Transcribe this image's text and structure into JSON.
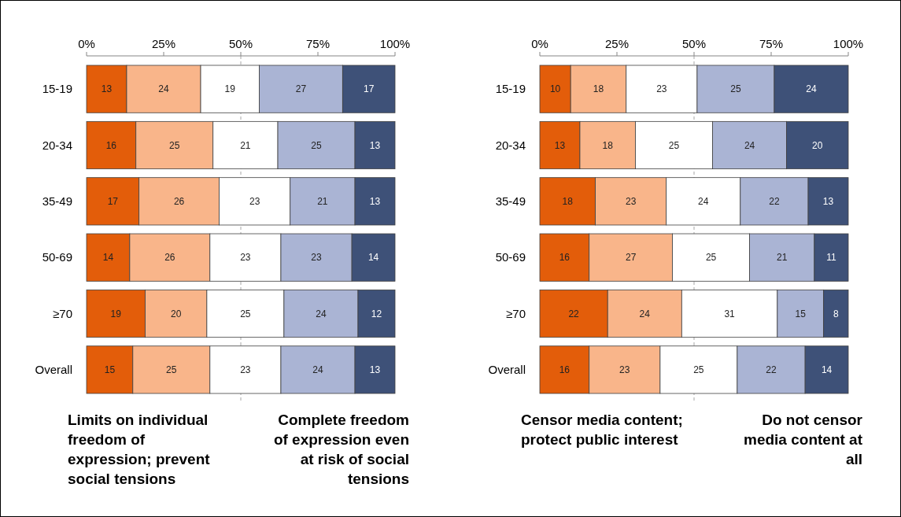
{
  "chart_data": [
    {
      "type": "bar",
      "orientation": "horizontal",
      "stacked": true,
      "data_labels": true,
      "categories": [
        "15-19",
        "20-34",
        "35-49",
        "50-69",
        "≥70",
        "Overall"
      ],
      "xlim": [
        0,
        100
      ],
      "xticks": [
        {
          "value": 0,
          "label": "0%"
        },
        {
          "value": 25,
          "label": "25%"
        },
        {
          "value": 50,
          "label": "50%"
        },
        {
          "value": 75,
          "label": "75%"
        },
        {
          "value": 100,
          "label": "100%"
        }
      ],
      "series": [
        {
          "color": "#e35d0a",
          "values": [
            13,
            16,
            17,
            14,
            19,
            15
          ]
        },
        {
          "color": "#f9b58a",
          "values": [
            24,
            25,
            26,
            26,
            20,
            25
          ]
        },
        {
          "color": "#ffffff",
          "values": [
            19,
            21,
            23,
            23,
            25,
            23
          ]
        },
        {
          "color": "#aab4d4",
          "values": [
            27,
            25,
            21,
            23,
            24,
            24
          ]
        },
        {
          "color": "#3e5178",
          "values": [
            17,
            13,
            13,
            14,
            12,
            13
          ]
        }
      ],
      "ref_lines": [
        {
          "axis": "x",
          "value": 50,
          "color": "#a6a6a6",
          "line_style": "dashed"
        }
      ],
      "annotations": [
        "Limits on individual\nfreedom of\nexpression; prevent\nsocial tensions",
        "Complete freedom\nof expression even\nat risk of social\ntensions"
      ]
    },
    {
      "type": "bar",
      "orientation": "horizontal",
      "stacked": true,
      "data_labels": true,
      "categories": [
        "15-19",
        "20-34",
        "35-49",
        "50-69",
        "≥70",
        "Overall"
      ],
      "xlim": [
        0,
        100
      ],
      "xticks": [
        {
          "value": 0,
          "label": "0%"
        },
        {
          "value": 25,
          "label": "25%"
        },
        {
          "value": 50,
          "label": "50%"
        },
        {
          "value": 75,
          "label": "75%"
        },
        {
          "value": 100,
          "label": "100%"
        }
      ],
      "series": [
        {
          "color": "#e35d0a",
          "values": [
            10,
            13,
            18,
            16,
            22,
            16
          ]
        },
        {
          "color": "#f9b58a",
          "values": [
            18,
            18,
            23,
            27,
            24,
            23
          ]
        },
        {
          "color": "#ffffff",
          "values": [
            23,
            25,
            24,
            25,
            31,
            25
          ]
        },
        {
          "color": "#aab4d4",
          "values": [
            25,
            24,
            22,
            21,
            15,
            22
          ]
        },
        {
          "color": "#3e5178",
          "values": [
            24,
            20,
            13,
            11,
            8,
            14
          ]
        }
      ],
      "ref_lines": [
        {
          "axis": "x",
          "value": 50,
          "color": "#a6a6a6",
          "line_style": "dashed"
        }
      ],
      "annotations": [
        "Censor media content;\nprotect public interest",
        "Do not censor\nmedia content at\nall"
      ]
    }
  ]
}
